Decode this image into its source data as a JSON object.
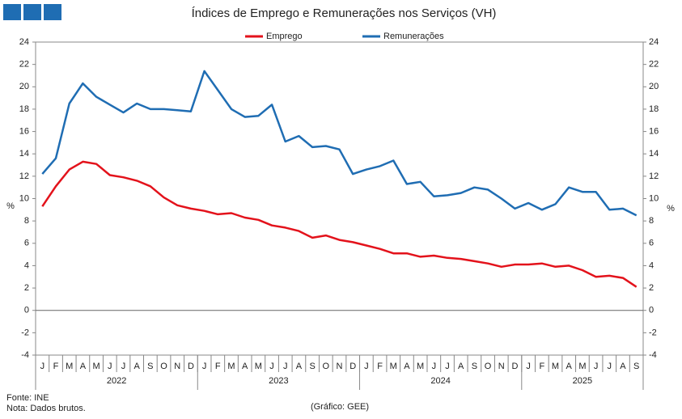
{
  "chart_data": {
    "type": "line",
    "title": "Índices de Emprego e Remunerações nos Serviços (VH)",
    "categories": [
      "J",
      "F",
      "M",
      "A",
      "M",
      "J",
      "J",
      "A",
      "S",
      "O",
      "N",
      "D",
      "J",
      "F",
      "M",
      "A",
      "M",
      "J",
      "J",
      "A",
      "S",
      "O",
      "N",
      "D",
      "J",
      "F",
      "M",
      "A",
      "M",
      "J",
      "J",
      "A",
      "S",
      "O",
      "N",
      "D",
      "J",
      "F",
      "M",
      "A",
      "M",
      "J",
      "J",
      "A",
      "S"
    ],
    "year_labels": [
      "2022",
      "2023",
      "2024",
      "2025"
    ],
    "series": [
      {
        "name": "Emprego",
        "color": "#e3121b",
        "values": [
          9.3,
          11.1,
          12.6,
          13.3,
          13.1,
          12.1,
          11.9,
          11.6,
          11.1,
          10.1,
          9.4,
          9.1,
          8.9,
          8.6,
          8.7,
          8.3,
          8.1,
          7.6,
          7.4,
          7.1,
          6.5,
          6.7,
          6.3,
          6.1,
          5.8,
          5.5,
          5.1,
          5.1,
          4.8,
          4.9,
          4.7,
          4.6,
          4.4,
          4.2,
          3.9,
          4.1,
          4.1,
          4.2,
          3.9,
          4.0,
          3.6,
          3.0,
          3.1,
          2.9,
          2.1
        ]
      },
      {
        "name": "Remunerações",
        "color": "#1f6db3",
        "values": [
          12.2,
          13.6,
          18.5,
          20.3,
          19.1,
          18.4,
          17.7,
          18.5,
          18.0,
          18.0,
          17.9,
          17.8,
          21.4,
          19.7,
          18.0,
          17.3,
          17.4,
          18.4,
          15.1,
          15.6,
          14.6,
          14.7,
          14.4,
          12.2,
          12.6,
          12.9,
          13.4,
          11.3,
          11.5,
          10.2,
          10.3,
          10.5,
          11.0,
          10.8,
          10.0,
          9.1,
          9.6,
          9.0,
          9.5,
          11.0,
          10.6,
          10.6,
          9.0,
          9.1,
          8.5
        ]
      }
    ],
    "ylim": [
      -4,
      24
    ],
    "yticks": [
      -4,
      -2,
      0,
      2,
      4,
      6,
      8,
      10,
      12,
      14,
      16,
      18,
      20,
      22,
      24
    ],
    "y2lim": [
      -4,
      24
    ],
    "y2ticks": [
      -4,
      -2,
      0,
      2,
      4,
      6,
      8,
      10,
      12,
      14,
      16,
      18,
      20,
      22,
      24
    ],
    "y_label": "%",
    "y2_label": "%",
    "legend": "top",
    "source": "Fonte: INE",
    "note": "Nota: Dados brutos.",
    "credit": "(Gráfico: GEE)"
  }
}
